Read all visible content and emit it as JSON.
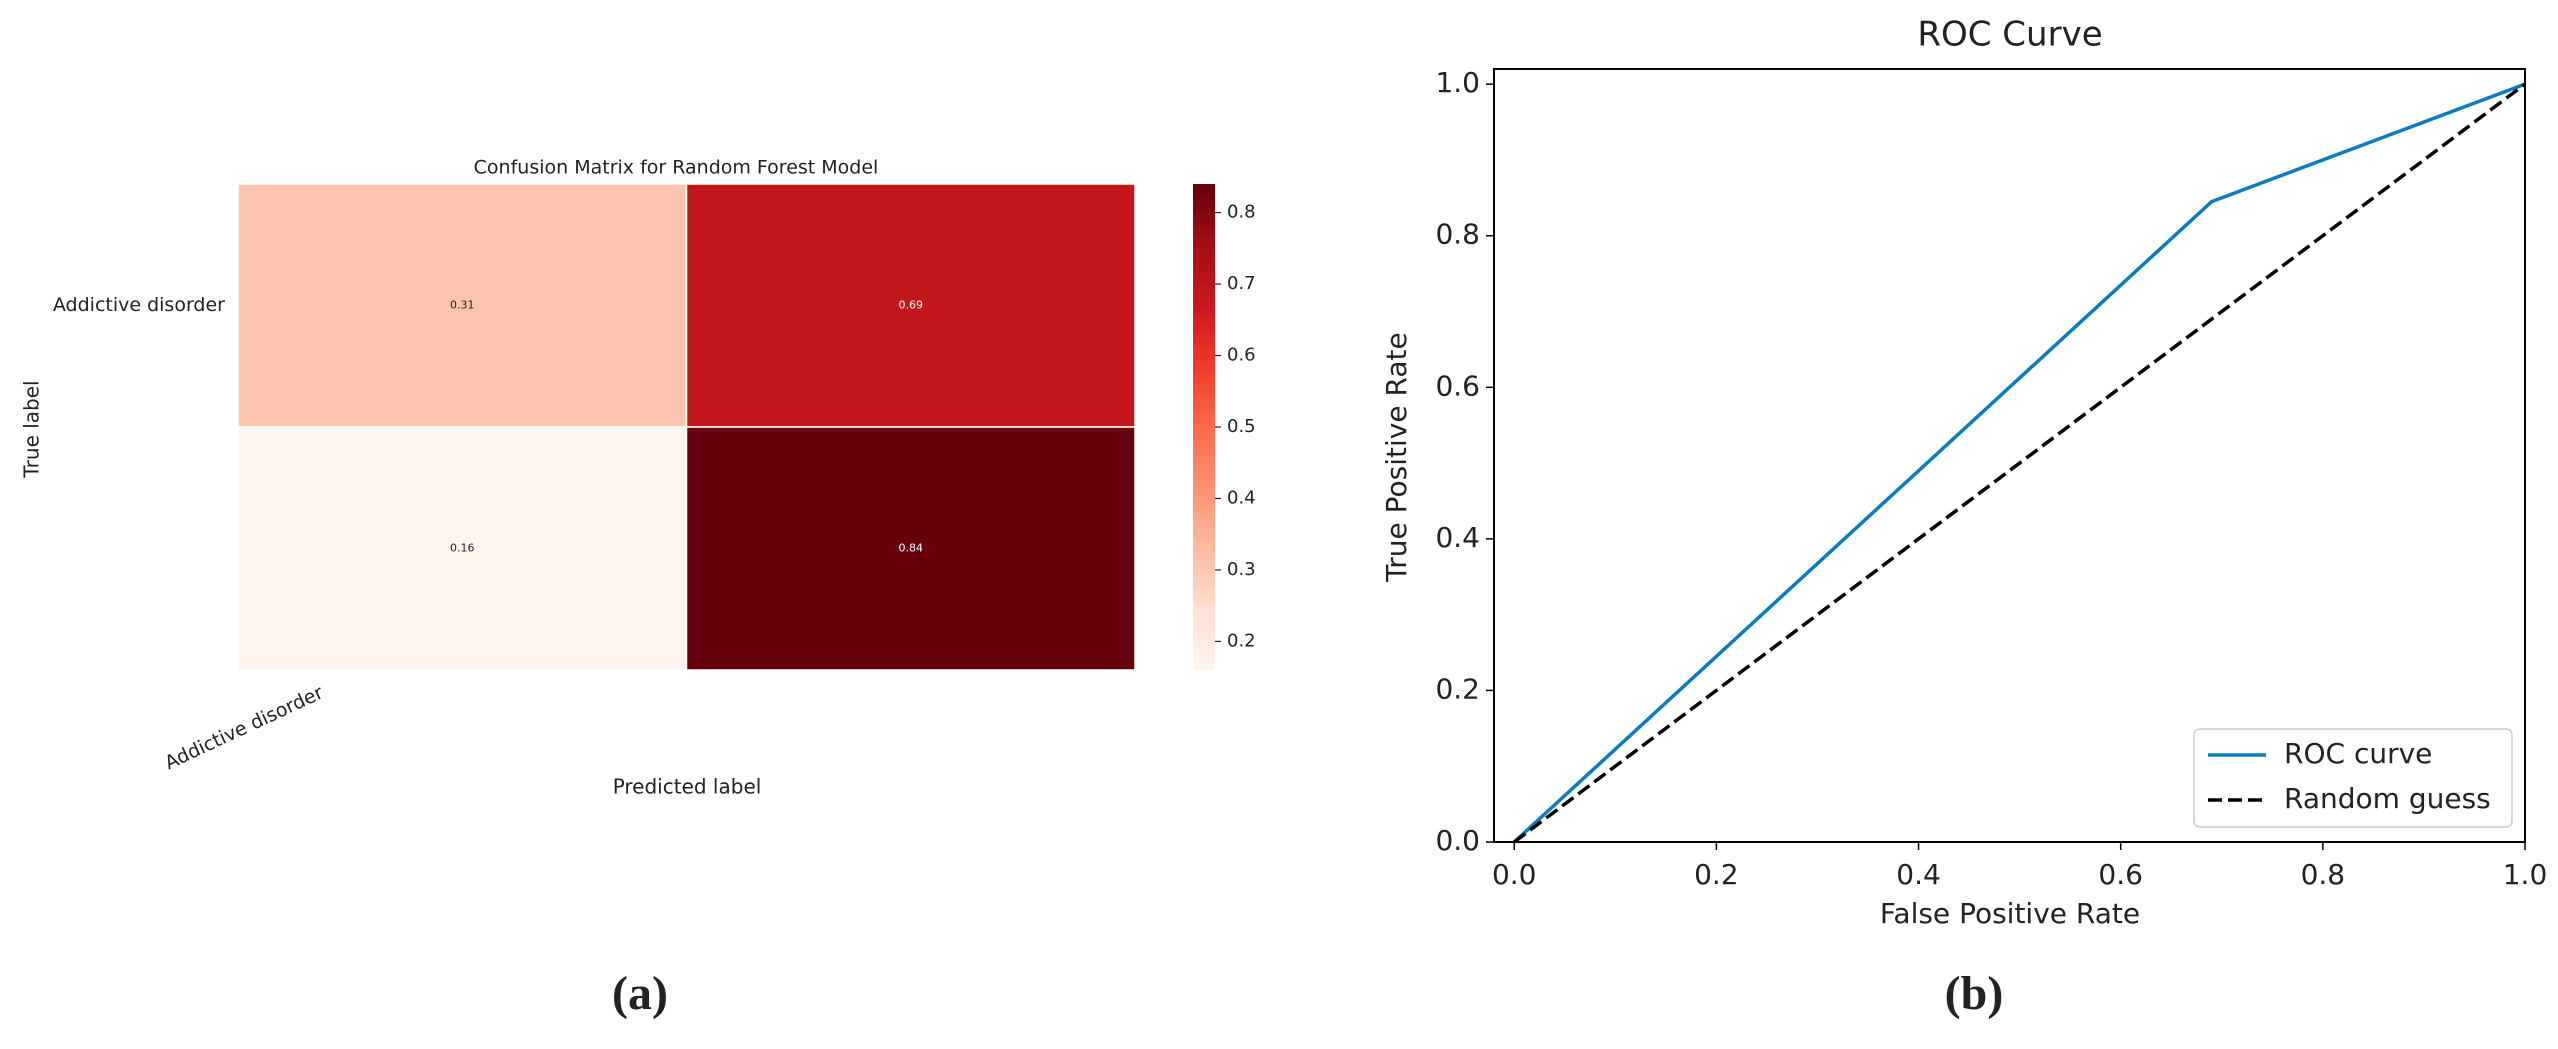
{
  "chart_data": [
    {
      "type": "heatmap",
      "title": "Confusion Matrix for Random Forest Model",
      "xlabel": "Predicted label",
      "ylabel": "True label",
      "x_categories": [
        "Addictive disorder",
        null
      ],
      "y_categories": [
        "Addictive disorder",
        null
      ],
      "values": [
        [
          0.31,
          0.69
        ],
        [
          0.16,
          0.84
        ]
      ],
      "colormap": [
        "#fff5f0",
        "#fee0d2",
        "#fcbba1",
        "#fc9272",
        "#fb6a4a",
        "#ef3b2c",
        "#cb181d",
        "#a50f15",
        "#67000d"
      ],
      "clim": [
        0.16,
        0.84
      ],
      "colorbar_ticks": [
        0.2,
        0.3,
        0.4,
        0.5,
        0.6,
        0.7,
        0.8
      ],
      "panel_label": "(a)"
    },
    {
      "type": "line",
      "title": "ROC Curve",
      "xlabel": "False Positive Rate",
      "ylabel": "True Positive Rate",
      "series": [
        {
          "name": "ROC curve",
          "color": "#0a7bbd",
          "dash": "solid",
          "x": [
            0,
            0.69,
            1
          ],
          "values": [
            0,
            0.845,
            1
          ]
        },
        {
          "name": "Random guess",
          "color": "#000000",
          "dash": "dashed",
          "x": [
            0,
            1
          ],
          "values": [
            0,
            1
          ]
        }
      ],
      "xlim": [
        -0.02,
        1.0
      ],
      "ylim": [
        0,
        1.02
      ],
      "xticks": [
        {
          "value": 0,
          "label": "0.0"
        },
        0.2,
        0.4,
        0.6,
        0.8,
        {
          "value": 1,
          "label": "1.0"
        }
      ],
      "yticks": [
        {
          "value": 0,
          "label": "0.0"
        },
        0.2,
        0.4,
        0.6,
        0.8,
        {
          "value": 1,
          "label": "1.0"
        }
      ],
      "grid": false,
      "legend": "lower right",
      "panel_label": "(b)"
    }
  ]
}
